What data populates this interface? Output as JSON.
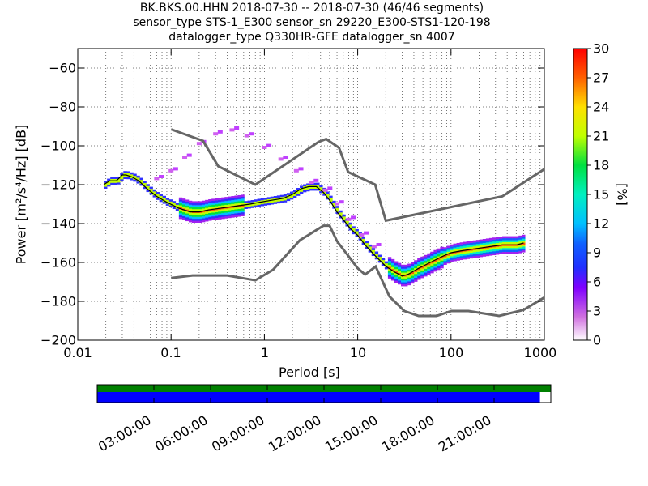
{
  "title": {
    "line1": "BK.BKS.00.HHN   2018-07-30 -- 2018-07-30  (46/46 segments)",
    "line2": "sensor_type STS-1_E300 sensor_sn 29220_E300-STS1-120-198",
    "line3": "datalogger_type Q330HR-GFE datalogger_sn 4007"
  },
  "colors": {
    "noise_model": "#666666",
    "mean_line": "#000000",
    "coverage_top": "#008000",
    "coverage_bottom": "#0000ff"
  },
  "chart_data": {
    "type": "heatmap",
    "xlabel": "Period [s]",
    "ylabel": "Power [m²/s⁴/Hz] [dB]",
    "x_scale": "log",
    "xlim": [
      0.01,
      1000
    ],
    "ylim": [
      -200,
      -50
    ],
    "x_ticks": [
      "0.01",
      "0.1",
      "1",
      "10",
      "100",
      "1000"
    ],
    "y_ticks": [
      "−60",
      "−80",
      "−100",
      "−120",
      "−140",
      "−160",
      "−180",
      "−200"
    ],
    "grid": true,
    "colorbar": {
      "label": "[%]",
      "range": [
        0,
        30
      ],
      "ticks": [
        "0",
        "3",
        "6",
        "9",
        "12",
        "15",
        "18",
        "21",
        "24",
        "27",
        "30"
      ]
    },
    "series": [
      {
        "kind": "mean",
        "x": [
          0.019,
          0.022,
          0.026,
          0.03,
          0.033,
          0.038,
          0.045,
          0.055,
          0.07,
          0.09,
          0.12,
          0.16,
          0.2,
          0.25,
          0.35,
          0.5,
          0.7,
          0.9,
          1.2,
          1.6,
          2.0,
          2.5,
          3.0,
          3.6,
          4.3,
          5.0,
          6.0,
          7.0,
          8.5,
          10,
          12,
          15,
          20,
          25,
          30,
          35,
          45,
          60,
          80,
          100,
          130,
          180,
          250,
          350,
          500,
          600
        ],
        "y": [
          -120,
          -118,
          -118,
          -115,
          -115,
          -116,
          -118,
          -122,
          -126,
          -129,
          -132,
          -134,
          -134,
          -133,
          -132,
          -131,
          -130,
          -129,
          -128,
          -127,
          -125,
          -122,
          -121,
          -121,
          -124,
          -128,
          -134,
          -138,
          -143,
          -146,
          -151,
          -156,
          -162,
          -165,
          -167,
          -166,
          -163,
          -160,
          -157,
          -155,
          -154,
          -153,
          -152,
          -151,
          -151,
          -150
        ]
      },
      {
        "kind": "noise-model-low",
        "x": [
          0.1,
          0.17,
          0.4,
          0.8,
          1.24,
          2.4,
          4.3,
          5,
          6,
          10,
          12,
          15.6,
          21.9,
          31.6,
          45,
          70,
          101,
          154,
          328,
          600,
          1000
        ],
        "y": [
          -168,
          -166.7,
          -166.7,
          -169.2,
          -163.7,
          -148.6,
          -141.1,
          -141.1,
          -149,
          -163,
          -166.2,
          -162.1,
          -177.5,
          -185,
          -187.5,
          -187.5,
          -185,
          -185,
          -187.5,
          -184.4,
          -178
        ]
      },
      {
        "kind": "noise-model-high",
        "x": [
          0.1,
          0.22,
          0.32,
          0.8,
          3.8,
          4.6,
          6.3,
          7.9,
          15.4,
          20,
          354.8,
          1000
        ],
        "y": [
          -91.5,
          -97.4,
          -110.5,
          -120,
          -98,
          -96.5,
          -101,
          -113.5,
          -120,
          -138.5,
          -126,
          -112
        ]
      }
    ]
  },
  "coverage": {
    "time_labels": [
      "03:00:00",
      "06:00:00",
      "09:00:00",
      "12:00:00",
      "15:00:00",
      "18:00:00",
      "21:00:00"
    ],
    "fraction": 0.976
  }
}
